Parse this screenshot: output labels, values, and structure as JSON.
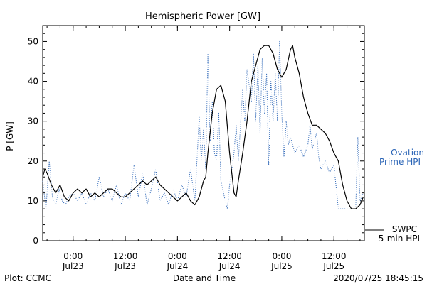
{
  "chart_data": {
    "type": "line",
    "title": "Hemispheric Power [GW]",
    "ylabel": "P [GW]",
    "xlabel": "Date and Time",
    "ylim": [
      0,
      54
    ],
    "xlim": [
      "2020-07-22 17:00",
      "2020-07-25 19:00"
    ],
    "yticks": [
      0,
      10,
      20,
      30,
      40,
      50
    ],
    "xticks": [
      {
        "x": "2020-07-23 00:00",
        "time": "0:00",
        "date": "Jul23"
      },
      {
        "x": "2020-07-23 12:00",
        "time": "12:00",
        "date": "Jul23"
      },
      {
        "x": "2020-07-24 00:00",
        "time": "0:00",
        "date": "Jul24"
      },
      {
        "x": "2020-07-24 12:00",
        "time": "12:00",
        "date": "Jul24"
      },
      {
        "x": "2020-07-25 00:00",
        "time": "0:00",
        "date": "Jul25"
      },
      {
        "x": "2020-07-25 12:00",
        "time": "12:00",
        "date": "Jul25"
      }
    ],
    "series": [
      {
        "name": "SWPC 5-min HPI",
        "color": "#000000",
        "style": "solid",
        "points": [
          [
            "2020-07-22 17:00",
            16
          ],
          [
            "2020-07-22 17:30",
            18
          ],
          [
            "2020-07-22 18:00",
            17
          ],
          [
            "2020-07-22 19:00",
            14
          ],
          [
            "2020-07-22 20:00",
            12
          ],
          [
            "2020-07-22 21:00",
            14
          ],
          [
            "2020-07-22 22:00",
            11
          ],
          [
            "2020-07-22 23:00",
            10
          ],
          [
            "2020-07-23 00:00",
            12
          ],
          [
            "2020-07-23 01:00",
            13
          ],
          [
            "2020-07-23 02:00",
            12
          ],
          [
            "2020-07-23 03:00",
            13
          ],
          [
            "2020-07-23 04:00",
            11
          ],
          [
            "2020-07-23 05:00",
            12
          ],
          [
            "2020-07-23 06:00",
            11
          ],
          [
            "2020-07-23 07:00",
            12
          ],
          [
            "2020-07-23 08:00",
            13
          ],
          [
            "2020-07-23 09:00",
            13
          ],
          [
            "2020-07-23 10:00",
            12
          ],
          [
            "2020-07-23 11:00",
            11
          ],
          [
            "2020-07-23 12:00",
            11
          ],
          [
            "2020-07-23 13:00",
            12
          ],
          [
            "2020-07-23 14:00",
            13
          ],
          [
            "2020-07-23 15:00",
            14
          ],
          [
            "2020-07-23 16:00",
            15
          ],
          [
            "2020-07-23 17:00",
            14
          ],
          [
            "2020-07-23 18:00",
            15
          ],
          [
            "2020-07-23 19:00",
            16
          ],
          [
            "2020-07-23 20:00",
            14
          ],
          [
            "2020-07-23 21:00",
            13
          ],
          [
            "2020-07-23 22:00",
            12
          ],
          [
            "2020-07-23 23:00",
            11
          ],
          [
            "2020-07-24 00:00",
            10
          ],
          [
            "2020-07-24 01:00",
            11
          ],
          [
            "2020-07-24 02:00",
            12
          ],
          [
            "2020-07-24 03:00",
            10
          ],
          [
            "2020-07-24 04:00",
            9
          ],
          [
            "2020-07-24 05:00",
            11
          ],
          [
            "2020-07-24 06:00",
            15
          ],
          [
            "2020-07-24 06:30",
            16
          ],
          [
            "2020-07-24 07:00",
            22
          ],
          [
            "2020-07-24 08:00",
            32
          ],
          [
            "2020-07-24 09:00",
            38
          ],
          [
            "2020-07-24 10:00",
            39
          ],
          [
            "2020-07-24 11:00",
            35
          ],
          [
            "2020-07-24 12:00",
            22
          ],
          [
            "2020-07-24 13:00",
            12
          ],
          [
            "2020-07-24 13:30",
            11
          ],
          [
            "2020-07-24 14:00",
            15
          ],
          [
            "2020-07-24 15:00",
            22
          ],
          [
            "2020-07-24 16:00",
            30
          ],
          [
            "2020-07-24 17:00",
            40
          ],
          [
            "2020-07-24 18:00",
            44
          ],
          [
            "2020-07-24 19:00",
            48
          ],
          [
            "2020-07-24 20:00",
            49
          ],
          [
            "2020-07-24 21:00",
            49
          ],
          [
            "2020-07-24 22:00",
            47
          ],
          [
            "2020-07-24 23:00",
            43
          ],
          [
            "2020-07-25 00:00",
            41
          ],
          [
            "2020-07-25 01:00",
            43
          ],
          [
            "2020-07-25 02:00",
            48
          ],
          [
            "2020-07-25 02:30",
            49
          ],
          [
            "2020-07-25 03:00",
            46
          ],
          [
            "2020-07-25 04:00",
            42
          ],
          [
            "2020-07-25 05:00",
            36
          ],
          [
            "2020-07-25 06:00",
            32
          ],
          [
            "2020-07-25 07:00",
            29
          ],
          [
            "2020-07-25 08:00",
            29
          ],
          [
            "2020-07-25 09:00",
            28
          ],
          [
            "2020-07-25 10:00",
            27
          ],
          [
            "2020-07-25 11:00",
            25
          ],
          [
            "2020-07-25 12:00",
            22
          ],
          [
            "2020-07-25 13:00",
            20
          ],
          [
            "2020-07-25 14:00",
            14
          ],
          [
            "2020-07-25 15:00",
            10
          ],
          [
            "2020-07-25 16:00",
            8
          ],
          [
            "2020-07-25 17:00",
            8
          ],
          [
            "2020-07-25 18:00",
            9
          ],
          [
            "2020-07-25 18:45",
            11
          ]
        ]
      },
      {
        "name": "Ovation Prime HPI",
        "color": "#2a64b6",
        "style": "dotted",
        "points": [
          [
            "2020-07-22 17:00",
            15
          ],
          [
            "2020-07-22 17:45",
            8
          ],
          [
            "2020-07-22 18:30",
            20
          ],
          [
            "2020-07-22 19:15",
            11
          ],
          [
            "2020-07-22 20:00",
            9
          ],
          [
            "2020-07-22 20:45",
            13
          ],
          [
            "2020-07-22 21:30",
            10
          ],
          [
            "2020-07-22 22:15",
            9
          ],
          [
            "2020-07-22 23:00",
            11
          ],
          [
            "2020-07-23 00:00",
            12
          ],
          [
            "2020-07-23 01:00",
            10
          ],
          [
            "2020-07-23 02:00",
            12
          ],
          [
            "2020-07-23 03:00",
            9
          ],
          [
            "2020-07-23 04:00",
            12
          ],
          [
            "2020-07-23 05:00",
            10
          ],
          [
            "2020-07-23 06:00",
            16
          ],
          [
            "2020-07-23 07:00",
            11
          ],
          [
            "2020-07-23 08:00",
            13
          ],
          [
            "2020-07-23 09:00",
            10
          ],
          [
            "2020-07-23 10:00",
            14
          ],
          [
            "2020-07-23 11:00",
            9
          ],
          [
            "2020-07-23 12:00",
            12
          ],
          [
            "2020-07-23 13:00",
            10
          ],
          [
            "2020-07-23 14:00",
            19
          ],
          [
            "2020-07-23 15:00",
            11
          ],
          [
            "2020-07-23 16:00",
            17
          ],
          [
            "2020-07-23 17:00",
            9
          ],
          [
            "2020-07-23 18:00",
            13
          ],
          [
            "2020-07-23 19:00",
            18
          ],
          [
            "2020-07-23 20:00",
            10
          ],
          [
            "2020-07-23 21:00",
            12
          ],
          [
            "2020-07-23 22:00",
            9
          ],
          [
            "2020-07-23 23:00",
            13
          ],
          [
            "2020-07-24 00:00",
            10
          ],
          [
            "2020-07-24 01:00",
            14
          ],
          [
            "2020-07-24 02:00",
            11
          ],
          [
            "2020-07-24 03:00",
            18
          ],
          [
            "2020-07-24 04:00",
            10
          ],
          [
            "2020-07-24 05:00",
            31
          ],
          [
            "2020-07-24 05:30",
            20
          ],
          [
            "2020-07-24 06:00",
            28
          ],
          [
            "2020-07-24 06:30",
            18
          ],
          [
            "2020-07-24 07:00",
            47
          ],
          [
            "2020-07-24 07:30",
            25
          ],
          [
            "2020-07-24 08:00",
            35
          ],
          [
            "2020-07-24 08:30",
            22
          ],
          [
            "2020-07-24 09:00",
            20
          ],
          [
            "2020-07-24 09:30",
            32
          ],
          [
            "2020-07-24 10:00",
            15
          ],
          [
            "2020-07-24 11:00",
            10
          ],
          [
            "2020-07-24 11:30",
            8
          ],
          [
            "2020-07-24 12:00",
            14
          ],
          [
            "2020-07-24 13:00",
            22
          ],
          [
            "2020-07-24 13:30",
            29
          ],
          [
            "2020-07-24 14:00",
            20
          ],
          [
            "2020-07-24 15:00",
            38
          ],
          [
            "2020-07-24 15:30",
            30
          ],
          [
            "2020-07-24 16:00",
            43
          ],
          [
            "2020-07-24 17:00",
            35
          ],
          [
            "2020-07-24 17:30",
            47
          ],
          [
            "2020-07-24 18:00",
            30
          ],
          [
            "2020-07-24 18:30",
            44
          ],
          [
            "2020-07-24 19:00",
            27
          ],
          [
            "2020-07-24 19:30",
            46
          ],
          [
            "2020-07-24 20:00",
            32
          ],
          [
            "2020-07-24 20:30",
            42
          ],
          [
            "2020-07-24 21:00",
            19
          ],
          [
            "2020-07-24 21:30",
            40
          ],
          [
            "2020-07-24 22:00",
            30
          ],
          [
            "2020-07-24 22:30",
            42
          ],
          [
            "2020-07-24 23:00",
            30
          ],
          [
            "2020-07-24 23:30",
            50
          ],
          [
            "2020-07-25 00:00",
            32
          ],
          [
            "2020-07-25 00:30",
            21
          ],
          [
            "2020-07-25 01:00",
            30
          ],
          [
            "2020-07-25 01:30",
            24
          ],
          [
            "2020-07-25 02:00",
            26
          ],
          [
            "2020-07-25 03:00",
            22
          ],
          [
            "2020-07-25 04:00",
            24
          ],
          [
            "2020-07-25 05:00",
            21
          ],
          [
            "2020-07-25 06:00",
            24
          ],
          [
            "2020-07-25 06:30",
            29
          ],
          [
            "2020-07-25 07:00",
            23
          ],
          [
            "2020-07-25 08:00",
            27
          ],
          [
            "2020-07-25 08:30",
            21
          ],
          [
            "2020-07-25 09:00",
            18
          ],
          [
            "2020-07-25 10:00",
            20
          ],
          [
            "2020-07-25 11:00",
            17
          ],
          [
            "2020-07-25 12:00",
            19
          ],
          [
            "2020-07-25 13:00",
            8
          ],
          [
            "2020-07-25 14:00",
            8
          ],
          [
            "2020-07-25 15:00",
            8
          ],
          [
            "2020-07-25 16:00",
            8
          ],
          [
            "2020-07-25 17:00",
            8
          ],
          [
            "2020-07-25 17:30",
            26
          ],
          [
            "2020-07-25 18:00",
            10
          ],
          [
            "2020-07-25 18:45",
            12
          ]
        ]
      }
    ],
    "legend": {
      "placement": "right",
      "ovation": {
        "label_line1": "— Ovation",
        "label_line2": "Prime HPI",
        "color": "#2a64b6"
      },
      "swpc": {
        "label_line1": "SWPC",
        "label_line2": "5-min HPI",
        "color": "#000000"
      }
    }
  },
  "footer": {
    "left": "Plot: CCMC",
    "center": "Date and Time",
    "right": "2020/07/25 18:45:15"
  }
}
